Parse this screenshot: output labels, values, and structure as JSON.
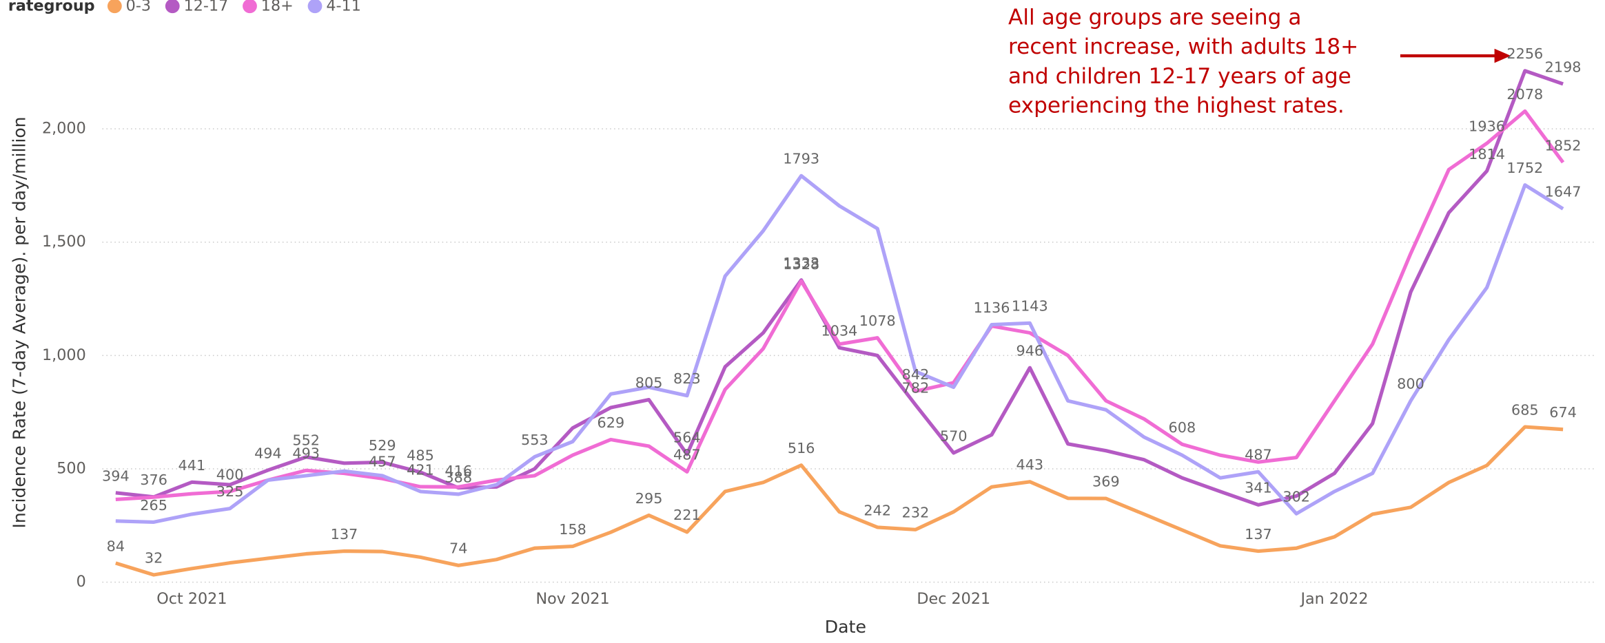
{
  "chart_data": {
    "type": "line",
    "legend_title": "rategroup",
    "xlabel": "Date",
    "ylabel": "Incidence Rate (7-day Average). per day/million",
    "annotation": [
      "All age groups are seeing a",
      "recent increase, with adults 18+",
      "and children 12-17 years of age",
      "experiencing the highest rates."
    ],
    "annotation_color": "#c00000",
    "categories": [
      null,
      null,
      "Oct 2021",
      null,
      null,
      null,
      null,
      null,
      null,
      null,
      null,
      null,
      "Nov 2021",
      null,
      null,
      null,
      null,
      null,
      null,
      null,
      null,
      null,
      "Dec 2021",
      null,
      null,
      null,
      null,
      null,
      null,
      null,
      null,
      null,
      "Jan 2022",
      null,
      null,
      null,
      null,
      null,
      null
    ],
    "ylim": [
      0,
      2350
    ],
    "yticks": [
      0,
      500,
      {
        "value": 1000,
        "label": "1,000"
      },
      {
        "value": 1500,
        "label": "1,500"
      },
      {
        "value": 2000,
        "label": "2,000"
      }
    ],
    "grid": true,
    "series": [
      {
        "name": "0-3",
        "color": "#f7a35c",
        "values": [
          84,
          32,
          60,
          85,
          105,
          125,
          137,
          135,
          110,
          74,
          100,
          150,
          158,
          220,
          295,
          221,
          400,
          440,
          516,
          310,
          242,
          232,
          310,
          420,
          443,
          370,
          369,
          300,
          230,
          160,
          137,
          150,
          200,
          300,
          330,
          440,
          515,
          685,
          674
        ],
        "value_labels": [
          "84",
          "32",
          null,
          null,
          null,
          null,
          "137",
          null,
          null,
          "74",
          null,
          null,
          "158",
          null,
          "295",
          "221",
          null,
          null,
          "516",
          null,
          "242",
          "232",
          null,
          null,
          "443",
          null,
          "369",
          null,
          null,
          null,
          "137",
          null,
          null,
          null,
          null,
          null,
          null,
          "685",
          "674"
        ]
      },
      {
        "name": "12-17",
        "color": "#b45ac3",
        "values": [
          394,
          376,
          441,
          430,
          494,
          552,
          525,
          529,
          485,
          416,
          420,
          500,
          680,
          770,
          805,
          564,
          950,
          1100,
          1333,
          1034,
          1000,
          782,
          570,
          650,
          946,
          610,
          580,
          540,
          460,
          400,
          341,
          380,
          480,
          700,
          1280,
          1630,
          1814,
          2256,
          2198
        ],
        "value_labels": [
          "394",
          "376",
          "441",
          null,
          "494",
          "552",
          null,
          "529",
          "485",
          "416",
          null,
          null,
          null,
          null,
          "805",
          "564",
          null,
          null,
          "1333",
          "1034",
          null,
          "782",
          "570",
          null,
          "946",
          null,
          null,
          null,
          null,
          null,
          "341",
          null,
          null,
          null,
          null,
          null,
          "1814",
          "2256",
          "2198"
        ]
      },
      {
        "name": "18+",
        "color": "#f06cd4",
        "values": [
          365,
          375,
          390,
          400,
          450,
          493,
          480,
          457,
          421,
          420,
          450,
          470,
          560,
          629,
          600,
          487,
          850,
          1030,
          1328,
          1050,
          1078,
          842,
          880,
          1130,
          1100,
          1000,
          800,
          720,
          608,
          560,
          530,
          550,
          800,
          1050,
          1450,
          1820,
          1936,
          2078,
          1852
        ],
        "value_labels": [
          null,
          null,
          null,
          "400",
          null,
          "493",
          null,
          "457",
          "421",
          null,
          null,
          null,
          null,
          "629",
          null,
          "487",
          null,
          null,
          "1328",
          null,
          "1078",
          "842",
          null,
          null,
          null,
          null,
          null,
          null,
          "608",
          null,
          null,
          null,
          null,
          null,
          null,
          null,
          "1936",
          "2078",
          "1852"
        ]
      },
      {
        "name": "4-11",
        "color": "#aea2f8",
        "values": [
          270,
          265,
          300,
          325,
          450,
          470,
          490,
          470,
          400,
          388,
          430,
          553,
          620,
          830,
          860,
          823,
          1350,
          1550,
          1793,
          1660,
          1560,
          930,
          860,
          1136,
          1143,
          800,
          760,
          640,
          560,
          460,
          487,
          302,
          400,
          480,
          800,
          1070,
          1300,
          1752,
          1647
        ],
        "value_labels": [
          null,
          "265",
          null,
          "325",
          null,
          null,
          null,
          null,
          null,
          "388",
          null,
          "553",
          null,
          null,
          null,
          "823",
          null,
          null,
          "1793",
          null,
          null,
          null,
          null,
          "1136",
          "1143",
          null,
          null,
          null,
          null,
          null,
          "487",
          "302",
          null,
          null,
          "800",
          null,
          null,
          "1752",
          "1647"
        ]
      }
    ]
  }
}
